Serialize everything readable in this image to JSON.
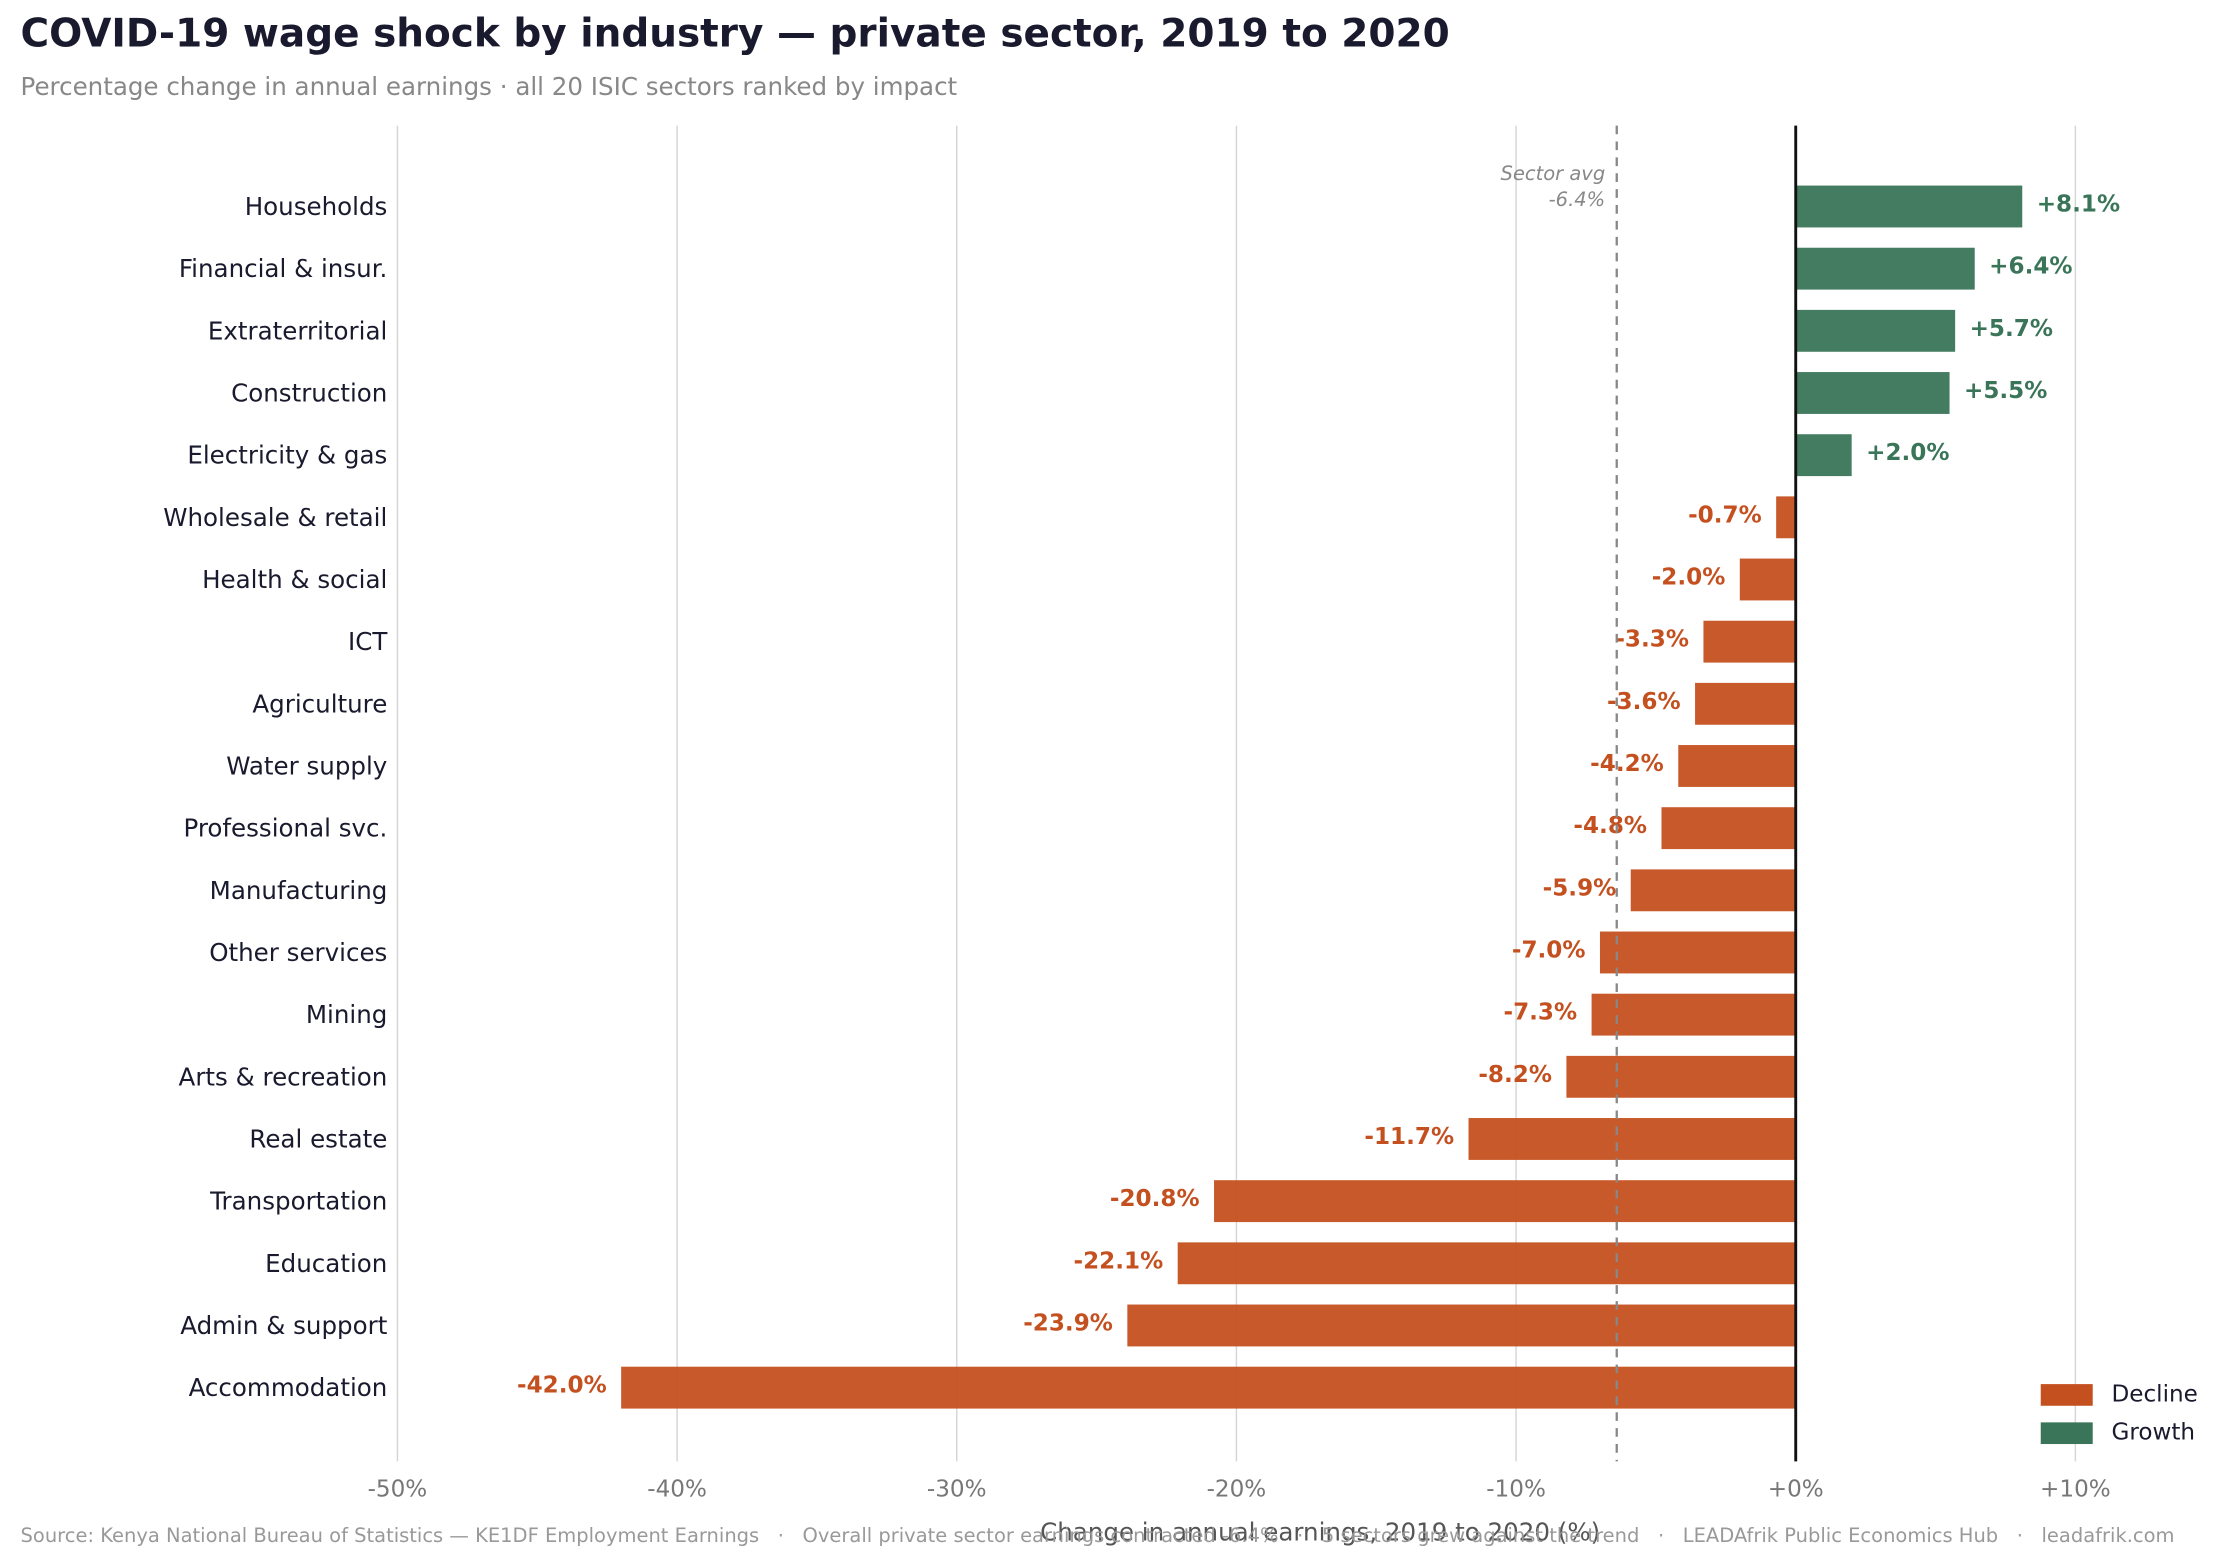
{
  "chart_data": {
    "type": "bar",
    "orientation": "horizontal",
    "title": "COVID-19 wage shock by industry — private sector, 2019 to 2020",
    "subtitle": "Percentage change in annual earnings · all 20 ISIC sectors ranked by impact",
    "x_label": "Change in annual earnings, 2019 to 2020 (%)",
    "source": "Source: Kenya National Bureau of Statistics — KE1DF Employment Earnings   ·   Overall private sector earnings contracted -6.4%   ·   5 sectors grew against the trend   ·   LEADAfrik Public Economics Hub   ·   leadafrik.com",
    "categories": [
      "Households",
      "Financial & insur.",
      "Extraterritorial",
      "Construction",
      "Electricity & gas",
      "Wholesale & retail",
      "Health & social",
      "ICT",
      "Agriculture",
      "Water supply",
      "Professional svc.",
      "Manufacturing",
      "Other services",
      "Mining",
      "Arts & recreation",
      "Real estate",
      "Transportation",
      "Education",
      "Admin & support",
      "Accommodation"
    ],
    "values": [
      8.1,
      6.4,
      5.7,
      5.5,
      2.0,
      -0.7,
      -2.0,
      -3.3,
      -3.6,
      -4.2,
      -4.8,
      -5.9,
      -7.0,
      -7.3,
      -8.2,
      -11.7,
      -20.8,
      -22.1,
      -23.9,
      -42.0
    ],
    "value_labels": [
      "+8.1%",
      "+6.4%",
      "+5.7%",
      "+5.5%",
      "+2.0%",
      "-0.7%",
      "-2.0%",
      "-3.3%",
      "-3.6%",
      "-4.2%",
      "-4.8%",
      "-5.9%",
      "-7.0%",
      "-7.3%",
      "-8.2%",
      "-11.7%",
      "-20.8%",
      "-22.1%",
      "-23.9%",
      "-42.0%"
    ],
    "legend": [
      {
        "name": "Decline",
        "color": "#c4501f"
      },
      {
        "name": "Growth",
        "color": "#3a7559"
      }
    ],
    "legend_position": "lower right",
    "xlim": [
      -50,
      10
    ],
    "xticks": [
      {
        "value": -50,
        "label": "-50%"
      },
      {
        "value": -40,
        "label": "-40%"
      },
      {
        "value": -30,
        "label": "-30%"
      },
      {
        "value": -20,
        "label": "-20%"
      },
      {
        "value": -10,
        "label": "-10%"
      },
      {
        "value": 0,
        "label": "+0%"
      },
      {
        "value": 10,
        "label": "+10%"
      }
    ],
    "grid": true,
    "reference_line": {
      "value": -6.4,
      "label": "Sector avg",
      "value_label": "-6.4%"
    }
  }
}
